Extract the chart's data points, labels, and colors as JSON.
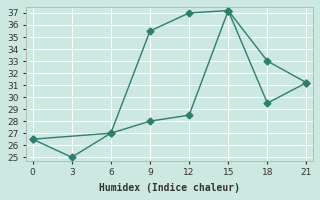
{
  "line1_x": [
    0,
    3,
    6,
    9,
    12,
    15
  ],
  "line1_y": [
    26.5,
    25,
    27,
    35.5,
    37.0,
    37.2
  ],
  "line2_x": [
    0,
    6,
    9,
    12,
    15,
    18,
    21
  ],
  "line2_y": [
    26.5,
    27,
    28.0,
    28.5,
    37.2,
    29.5,
    31.2
  ],
  "line3_x": [
    15,
    18,
    21
  ],
  "line3_y": [
    37.2,
    33.0,
    31.2
  ],
  "line_color": "#2e7d6e",
  "bg_color": "#cce8e0",
  "xlabel": "Humidex (Indice chaleur)",
  "xlim": [
    0,
    21
  ],
  "ylim": [
    25,
    37
  ],
  "xticks": [
    0,
    3,
    6,
    9,
    12,
    15,
    18,
    21
  ],
  "yticks": [
    25,
    26,
    27,
    28,
    29,
    30,
    31,
    32,
    33,
    34,
    35,
    36,
    37
  ]
}
